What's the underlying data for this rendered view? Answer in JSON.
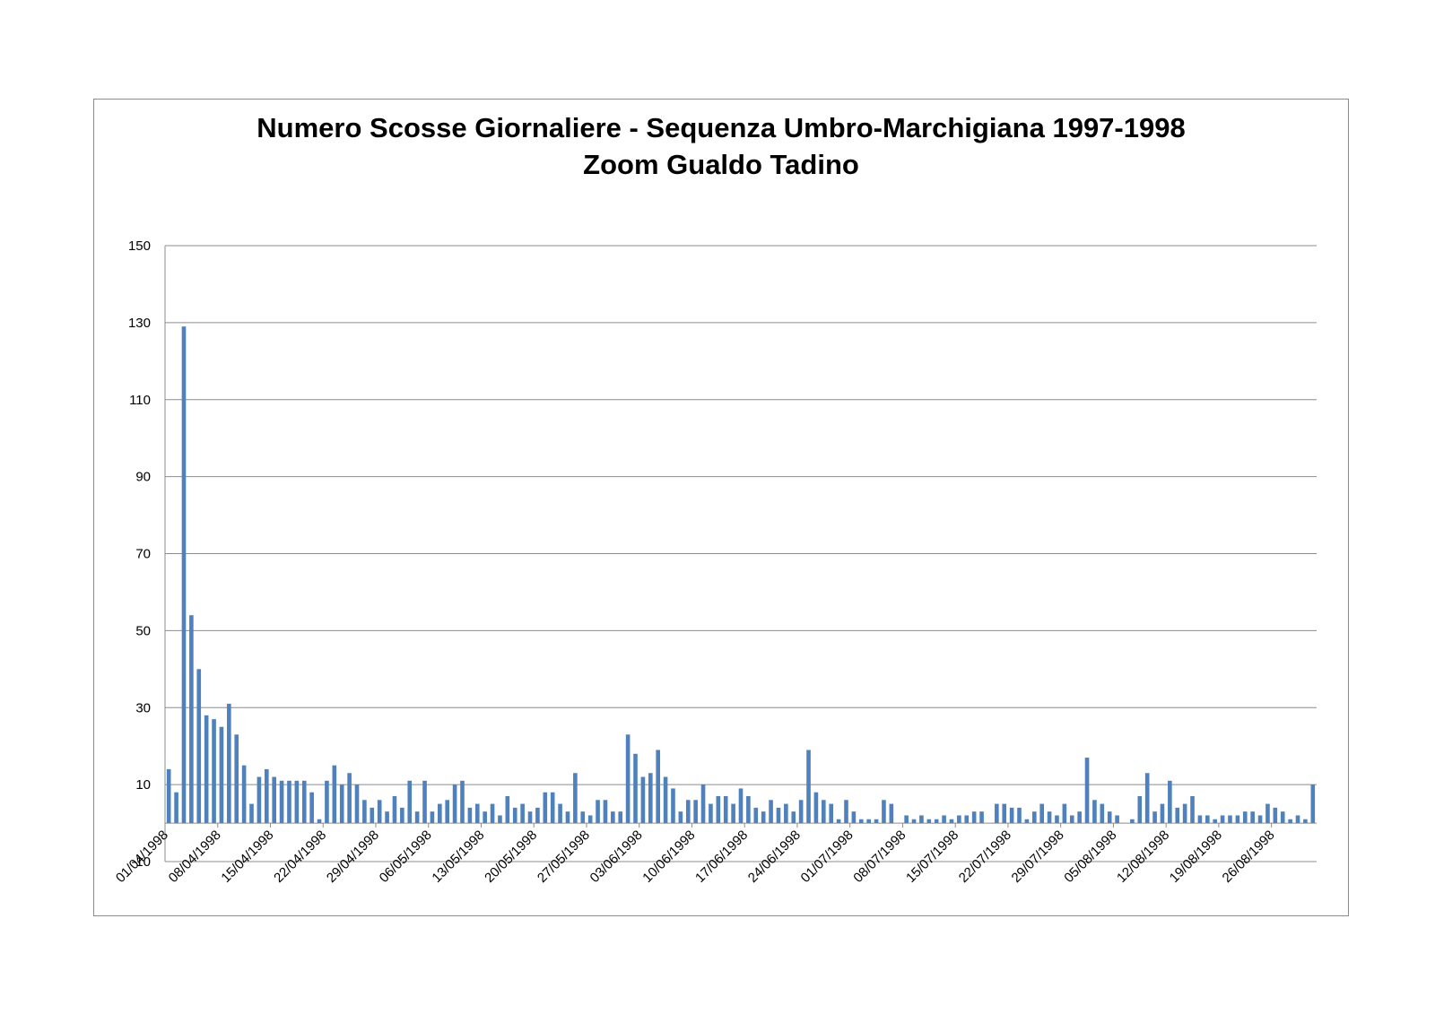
{
  "chart_data": {
    "type": "bar",
    "title": "Numero Scosse Giornaliere - Sequenza Umbro-Marchigiana 1997-1998",
    "subtitle": "Zoom Gualdo Tadino",
    "xlabel": "",
    "ylabel": "",
    "ylim": [
      -10,
      150
    ],
    "yticks": [
      -10,
      10,
      30,
      50,
      70,
      90,
      110,
      130,
      150
    ],
    "grid": true,
    "legend": "none",
    "bar_color": "#4f81bd",
    "start_date": "01/04/1998",
    "xtick_labels": [
      "01/04/1998",
      "08/04/1998",
      "15/04/1998",
      "22/04/1998",
      "29/04/1998",
      "06/05/1998",
      "13/05/1998",
      "20/05/1998",
      "27/05/1998",
      "03/06/1998",
      "10/06/1998",
      "17/06/1998",
      "24/06/1998",
      "01/07/1998",
      "08/07/1998",
      "15/07/1998",
      "22/07/1998",
      "29/07/1998",
      "05/08/1998",
      "12/08/1998",
      "19/08/1998",
      "26/08/1998"
    ],
    "values": [
      14,
      8,
      129,
      54,
      40,
      28,
      27,
      25,
      31,
      23,
      15,
      5,
      12,
      14,
      12,
      11,
      11,
      11,
      11,
      8,
      1,
      11,
      15,
      10,
      13,
      10,
      6,
      4,
      6,
      3,
      7,
      4,
      11,
      3,
      11,
      3,
      5,
      6,
      10,
      11,
      4,
      5,
      3,
      5,
      2,
      7,
      4,
      5,
      3,
      4,
      8,
      8,
      5,
      3,
      13,
      3,
      2,
      6,
      6,
      3,
      3,
      23,
      18,
      12,
      13,
      19,
      12,
      9,
      3,
      6,
      6,
      10,
      5,
      7,
      7,
      5,
      9,
      7,
      4,
      3,
      6,
      4,
      5,
      3,
      6,
      19,
      8,
      6,
      5,
      1,
      6,
      3,
      1,
      1,
      1,
      6,
      5,
      0,
      2,
      1,
      2,
      1,
      1,
      2,
      1,
      2,
      2,
      3,
      3,
      0,
      5,
      5,
      4,
      4,
      1,
      3,
      5,
      3,
      2,
      5,
      2,
      3,
      17,
      6,
      5,
      3,
      2,
      0,
      1,
      7,
      13,
      3,
      5,
      11,
      4,
      5,
      7,
      2,
      2,
      1,
      2,
      2,
      2,
      3,
      3,
      2,
      5,
      4,
      3,
      1,
      2,
      1,
      10
    ]
  }
}
